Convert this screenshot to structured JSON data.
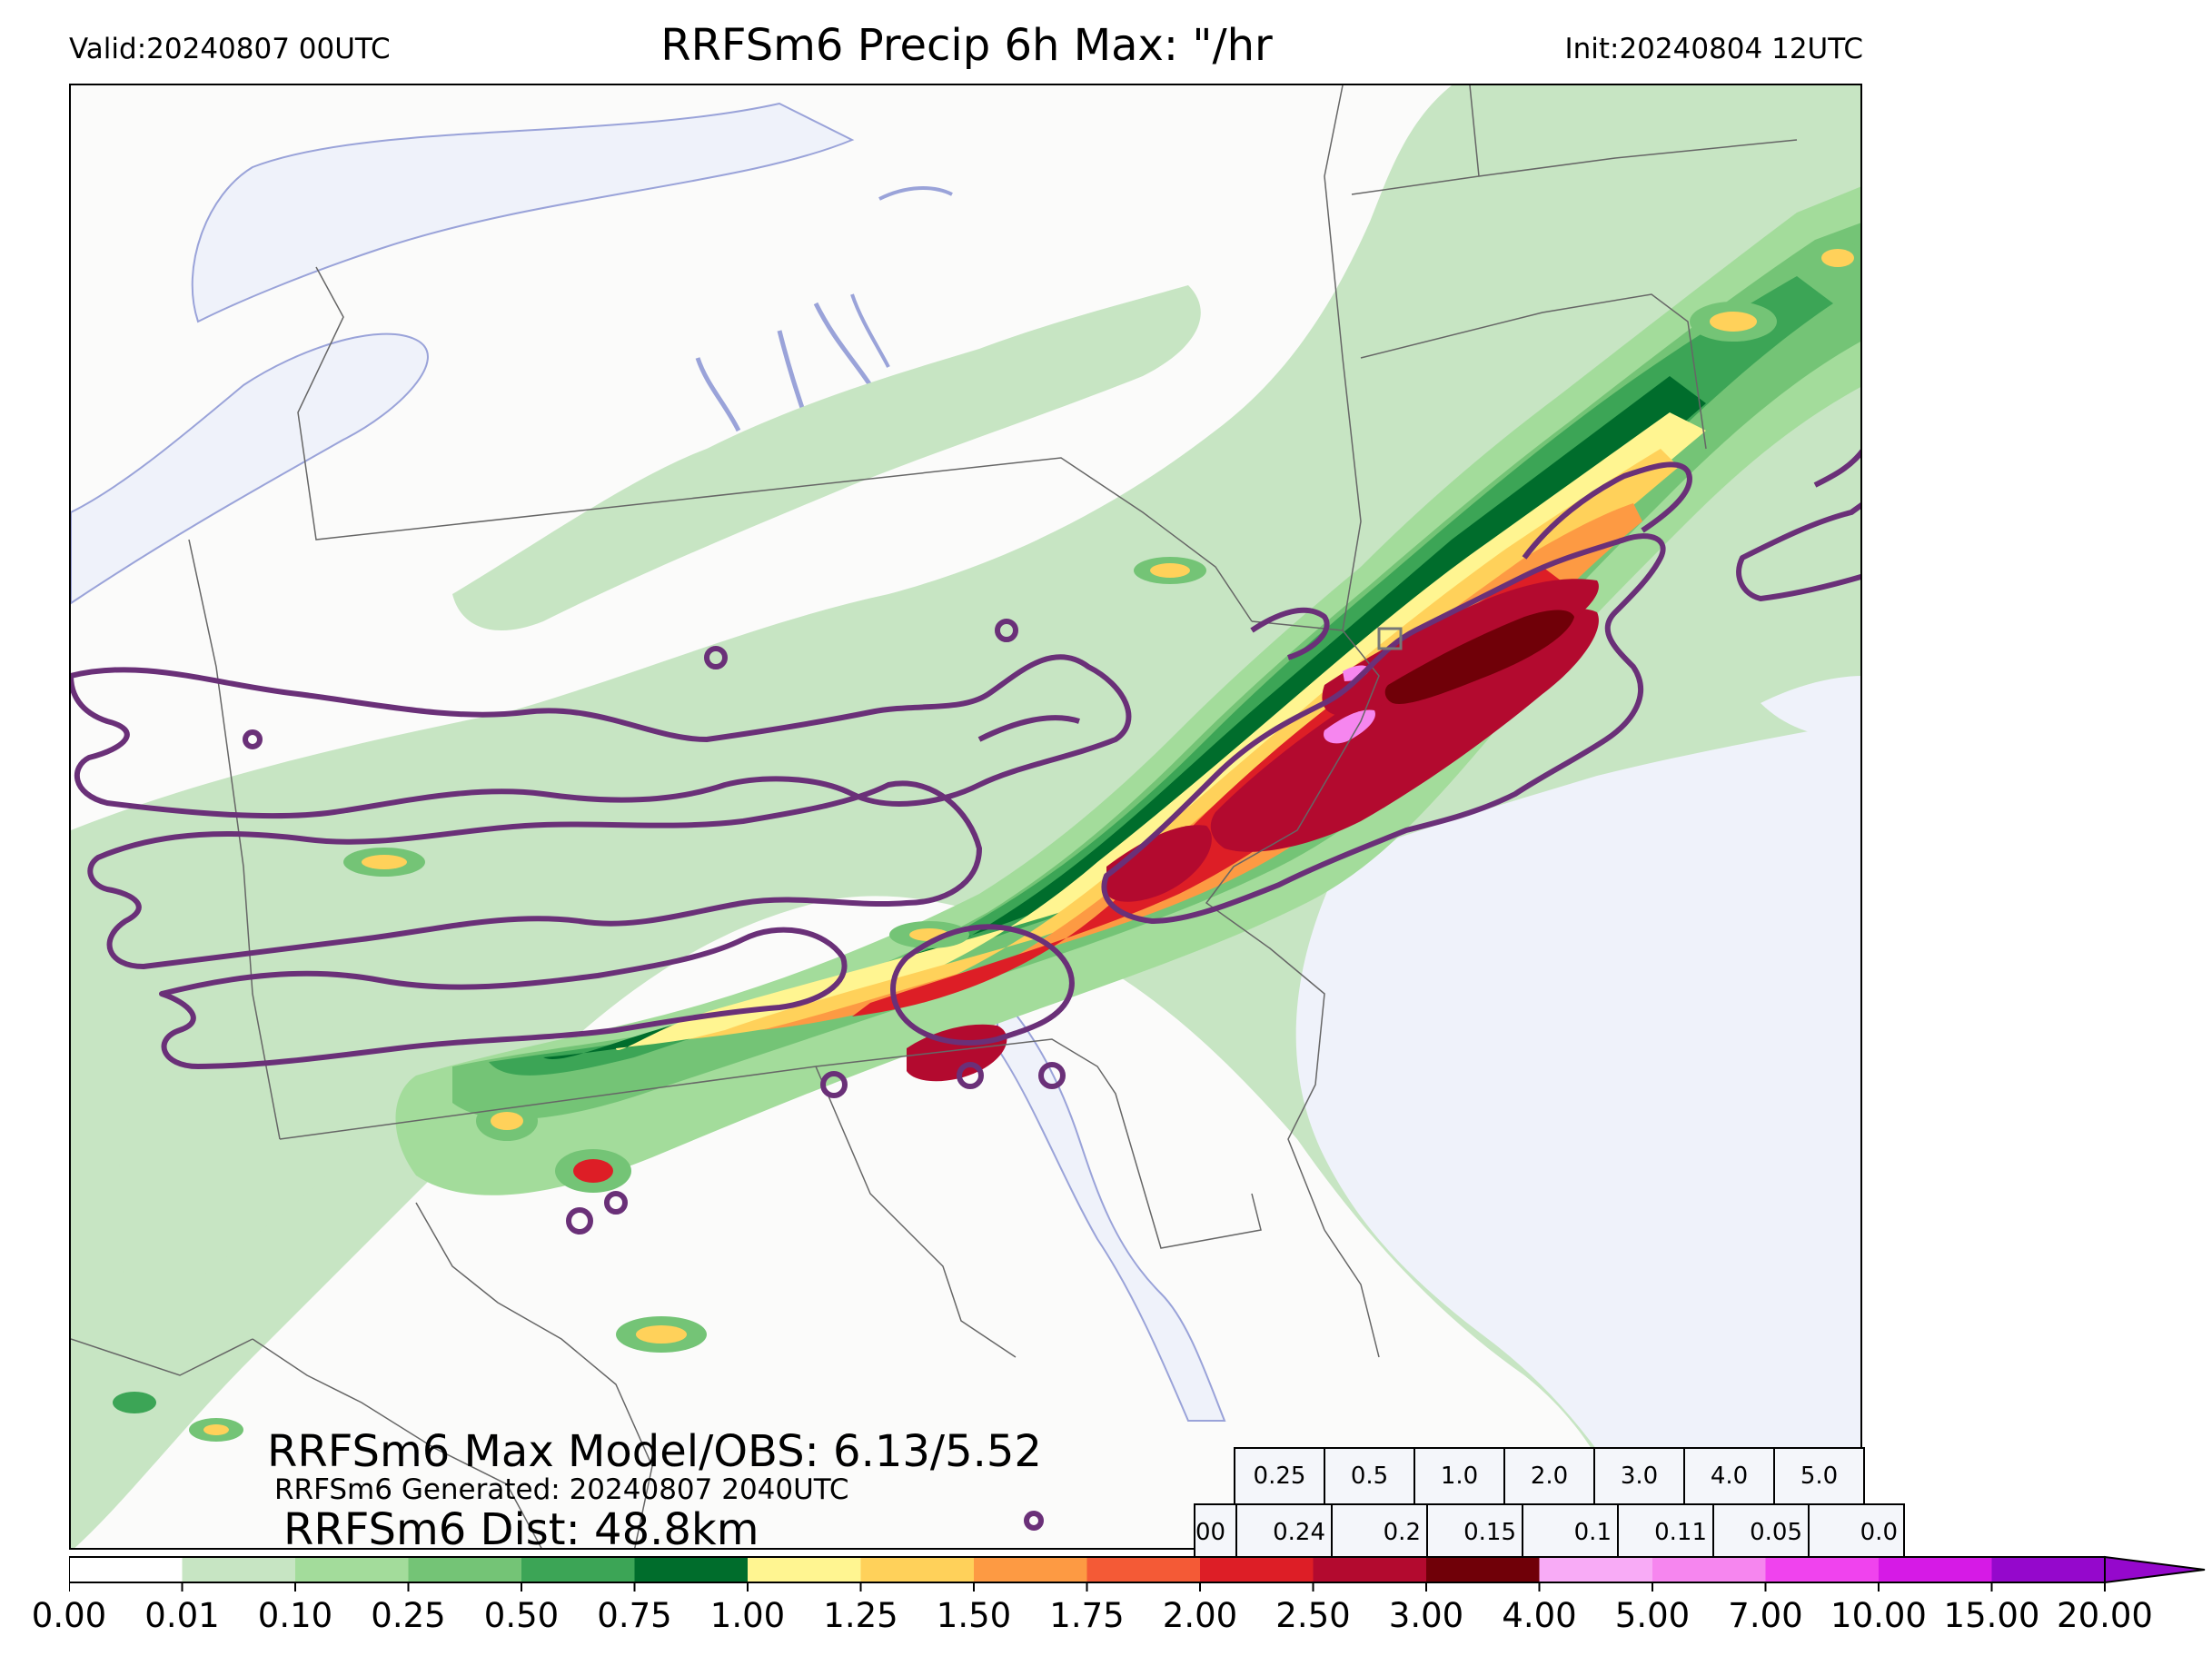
{
  "header": {
    "valid": "Valid:20240807 00UTC",
    "title": "RRFSm6 Precip 6h Max: \"/hr",
    "init": "Init:20240804 12UTC"
  },
  "annotations": {
    "max_model_obs": "RRFSm6 Max Model/OBS: 6.13/5.52",
    "generated": "RRFSm6 Generated: 20240807 2040UTC",
    "dist": "RRFSm6 Dist: 48.8km"
  },
  "threshold_table": {
    "thresholds": [
      "0.25",
      "0.5",
      "1.0",
      "2.0",
      "3.0",
      "4.0",
      "5.0"
    ],
    "first_cell": "00",
    "values": [
      "0.24",
      "0.2",
      "0.15",
      "0.1",
      "0.11",
      "0.05",
      "0.0"
    ]
  },
  "colorbar": {
    "ticks": [
      "0.00",
      "0.01",
      "0.10",
      "0.25",
      "0.50",
      "0.75",
      "1.00",
      "1.25",
      "1.50",
      "1.75",
      "2.00",
      "2.50",
      "3.00",
      "4.00",
      "5.00",
      "7.00",
      "10.00",
      "15.00",
      "20.00"
    ],
    "colors": [
      "#ffffff",
      "#c7e5c3",
      "#a3dc9b",
      "#74c476",
      "#3ca556",
      "#006d2c",
      "#fff591",
      "#ffd15a",
      "#fd9a43",
      "#f45a36",
      "#dd1e26",
      "#b30a2f",
      "#700008",
      "#f8abf6",
      "#f686ef",
      "#f043ee",
      "#d61ae6",
      "#9508cc"
    ]
  },
  "map": {
    "colors": {
      "water": "#eff2fa",
      "lake_edge": "#9aa3d9",
      "contour": "#6a3078",
      "border": "#666666",
      "very_light": "#dbeed7",
      "light_green": "#c7e5c3",
      "green_1": "#a3dc9b",
      "green_2": "#74c476",
      "green_3": "#3ca556",
      "green_4": "#006d2c",
      "yellow": "#fff591",
      "orange_1": "#ffd15a",
      "orange_2": "#fd9a43",
      "red_1": "#f45a36",
      "red_2": "#dd1e26",
      "crimson": "#b30a2f",
      "dark_red": "#700008",
      "pink": "#f686ef"
    }
  }
}
